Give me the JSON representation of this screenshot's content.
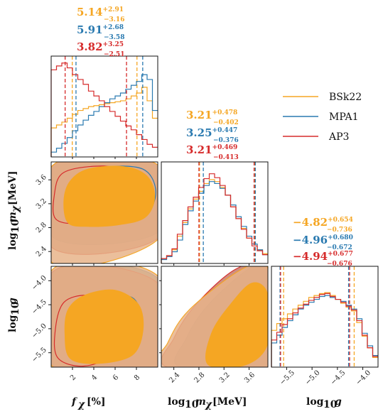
{
  "chart_data": {
    "type": "corner",
    "parameters": [
      {
        "key": "f",
        "label": "f_χ [%]",
        "ticks": [
          2,
          4,
          6,
          8
        ],
        "range": [
          0,
          10
        ]
      },
      {
        "key": "m",
        "label": "log10 m_χ [MeV]",
        "ticks": [
          2.4,
          2.8,
          3.2,
          3.6
        ],
        "range": [
          2.2,
          3.9
        ]
      },
      {
        "key": "g",
        "label": "log10 g",
        "ticks": [
          -5.5,
          -5.0,
          -4.5,
          -4.0
        ],
        "range": [
          -5.8,
          -3.7
        ]
      }
    ],
    "axis_labels": {
      "f_main": "f",
      "f_sub": "χ",
      "f_unit": "[%]",
      "m_pre": "log",
      "m_base": "10",
      "m_main": "m",
      "m_sub": "χ",
      "m_unit": "[MeV]",
      "g_pre": "log",
      "g_base": "10",
      "g_main": "g"
    },
    "y_ticks": {
      "m": [
        "3.6",
        "3.2",
        "2.8",
        "2.4"
      ],
      "g": [
        "−4.0",
        "−4.5",
        "−5.0",
        "−5.5"
      ]
    },
    "x_tick_labels": {
      "f": [
        "2",
        "4",
        "6",
        "8"
      ],
      "m": [
        "2.4",
        "2.8",
        "3.2",
        "3.6"
      ],
      "g": [
        "−5.5",
        "−5.0",
        "−4.5",
        "−4.0"
      ]
    },
    "series": [
      {
        "name": "BSk22",
        "color": "#f5a623"
      },
      {
        "name": "MPA1",
        "color": "#2a7ab0"
      },
      {
        "name": "AP3",
        "color": "#d62b2b"
      }
    ],
    "summaries": {
      "f": [
        {
          "series": "BSk22",
          "median": "5.14",
          "plus": "+2.91",
          "minus": "−3.16"
        },
        {
          "series": "MPA1",
          "median": "5.91",
          "plus": "+2.68",
          "minus": "−3.58"
        },
        {
          "series": "AP3",
          "median": "3.82",
          "plus": "+3.25",
          "minus": "−2.51"
        }
      ],
      "m": [
        {
          "series": "BSk22",
          "median": "3.21",
          "plus": "+0.478",
          "minus": "−0.402"
        },
        {
          "series": "MPA1",
          "median": "3.25",
          "plus": "+0.447",
          "minus": "−0.376"
        },
        {
          "series": "AP3",
          "median": "3.21",
          "plus": "+0.469",
          "minus": "−0.413"
        }
      ],
      "g": [
        {
          "series": "BSk22",
          "median": "−4.82",
          "plus": "+0.654",
          "minus": "−0.736"
        },
        {
          "series": "MPA1",
          "median": "−4.96",
          "plus": "+0.680",
          "minus": "−0.672"
        },
        {
          "series": "AP3",
          "median": "−4.94",
          "plus": "+0.677",
          "minus": "−0.676"
        }
      ]
    },
    "histograms": {
      "f": {
        "bins": [
          0,
          10,
          20
        ],
        "BSk22": [
          0.3,
          0.33,
          0.36,
          0.4,
          0.44,
          0.48,
          0.5,
          0.52,
          0.53,
          0.54,
          0.55,
          0.56,
          0.57,
          0.58,
          0.6,
          0.63,
          0.66,
          0.72,
          0.58,
          0.4
        ],
        "MPA1": [
          0.05,
          0.09,
          0.14,
          0.2,
          0.27,
          0.33,
          0.38,
          0.43,
          0.47,
          0.52,
          0.56,
          0.6,
          0.63,
          0.66,
          0.7,
          0.74,
          0.78,
          0.85,
          0.8,
          0.48
        ],
        "AP3": [
          0.9,
          0.94,
          0.97,
          0.92,
          0.85,
          0.8,
          0.75,
          0.68,
          0.63,
          0.58,
          0.52,
          0.47,
          0.42,
          0.37,
          0.32,
          0.28,
          0.23,
          0.18,
          0.13,
          0.1
        ],
        "quantiles": {
          "BSk22": [
            1.98,
            8.05
          ],
          "MPA1": [
            2.33,
            8.59
          ],
          "AP3": [
            1.31,
            7.07
          ]
        }
      },
      "m": {
        "bins": [
          2.2,
          3.9,
          20
        ],
        "BSk22": [
          0.05,
          0.08,
          0.14,
          0.28,
          0.42,
          0.56,
          0.66,
          0.74,
          0.82,
          0.86,
          0.84,
          0.78,
          0.7,
          0.58,
          0.46,
          0.36,
          0.26,
          0.2,
          0.14,
          0.1
        ],
        "MPA1": [
          0.04,
          0.07,
          0.12,
          0.24,
          0.4,
          0.54,
          0.64,
          0.72,
          0.8,
          0.84,
          0.82,
          0.77,
          0.7,
          0.6,
          0.48,
          0.38,
          0.28,
          0.2,
          0.14,
          0.09
        ],
        "AP3": [
          0.05,
          0.08,
          0.15,
          0.3,
          0.44,
          0.58,
          0.68,
          0.78,
          0.87,
          0.92,
          0.88,
          0.8,
          0.7,
          0.58,
          0.46,
          0.35,
          0.26,
          0.18,
          0.13,
          0.09
        ],
        "quantiles": {
          "BSk22": [
            2.81,
            3.69
          ],
          "MPA1": [
            2.87,
            3.7
          ],
          "AP3": [
            2.8,
            3.68
          ]
        }
      },
      "g": {
        "bins": [
          -5.8,
          -3.7,
          20
        ],
        "BSk22": [
          0.38,
          0.45,
          0.5,
          0.55,
          0.6,
          0.64,
          0.68,
          0.72,
          0.74,
          0.76,
          0.77,
          0.74,
          0.7,
          0.66,
          0.62,
          0.58,
          0.46,
          0.32,
          0.2,
          0.1
        ],
        "MPA1": [
          0.25,
          0.33,
          0.41,
          0.48,
          0.54,
          0.6,
          0.64,
          0.67,
          0.7,
          0.73,
          0.74,
          0.72,
          0.7,
          0.68,
          0.64,
          0.6,
          0.5,
          0.35,
          0.22,
          0.12
        ],
        "AP3": [
          0.28,
          0.36,
          0.44,
          0.5,
          0.56,
          0.61,
          0.65,
          0.69,
          0.72,
          0.75,
          0.76,
          0.73,
          0.7,
          0.67,
          0.63,
          0.59,
          0.48,
          0.33,
          0.2,
          0.11
        ],
        "quantiles": {
          "BSk22": [
            -5.56,
            -4.17
          ],
          "MPA1": [
            -5.63,
            -4.28
          ],
          "AP3": [
            -5.62,
            -4.26
          ]
        }
      }
    },
    "contours": {
      "fm": {
        "BSk22": {
          "outer": [
            [
              0.2,
              2.2
            ],
            [
              10,
              2.6
            ],
            [
              10,
              3.85
            ],
            [
              0.2,
              3.85
            ]
          ],
          "inner": [
            [
              1.6,
              2.88
            ],
            [
              3.5,
              2.82
            ],
            [
              6.4,
              2.85
            ],
            [
              8.8,
              2.97
            ],
            [
              9.7,
              3.3
            ],
            [
              9.0,
              3.66
            ],
            [
              6.8,
              3.82
            ],
            [
              3.5,
              3.78
            ],
            [
              1.8,
              3.58
            ],
            [
              1.2,
              3.25
            ]
          ]
        },
        "MPA1": {
          "outer": [
            [
              0.3,
              2.62
            ],
            [
              10,
              2.72
            ],
            [
              10,
              3.85
            ],
            [
              0.3,
              3.85
            ]
          ],
          "inner": [
            [
              1.8,
              2.92
            ],
            [
              4.5,
              2.86
            ],
            [
              7.2,
              2.92
            ],
            [
              9.2,
              3.08
            ],
            [
              9.8,
              3.45
            ],
            [
              8.6,
              3.78
            ],
            [
              5.2,
              3.82
            ],
            [
              2.6,
              3.7
            ],
            [
              1.6,
              3.4
            ]
          ]
        },
        "AP3": {
          "outer": [
            [
              0.2,
              2.45
            ],
            [
              10,
              2.62
            ],
            [
              10,
              3.85
            ],
            [
              0.2,
              3.85
            ]
          ],
          "inner": [
            [
              0.4,
              2.95
            ],
            [
              2.5,
              2.86
            ],
            [
              5.0,
              2.9
            ],
            [
              7.0,
              3.05
            ],
            [
              7.5,
              3.4
            ],
            [
              6.2,
              3.78
            ],
            [
              3.5,
              3.82
            ],
            [
              1.0,
              3.7
            ],
            [
              0.3,
              3.35
            ]
          ]
        }
      },
      "fg": {
        "BSk22": {
          "outer": [
            [
              0.2,
              -5.8
            ],
            [
              10,
              -5.8
            ],
            [
              10,
              -3.9
            ],
            [
              0.2,
              -3.75
            ]
          ],
          "inner": [
            [
              1.8,
              -5.62
            ],
            [
              4.5,
              -5.72
            ],
            [
              7.6,
              -5.55
            ],
            [
              8.6,
              -5.05
            ],
            [
              8.2,
              -4.5
            ],
            [
              6.0,
              -4.2
            ],
            [
              3.2,
              -4.3
            ],
            [
              1.6,
              -4.6
            ],
            [
              1.3,
              -5.1
            ]
          ]
        },
        "MPA1": {
          "outer": [
            [
              0.3,
              -5.8
            ],
            [
              10,
              -5.8
            ],
            [
              10,
              -3.95
            ],
            [
              0.3,
              -3.8
            ]
          ],
          "inner": [
            [
              3.2,
              -5.45
            ],
            [
              5.0,
              -5.6
            ],
            [
              7.6,
              -5.3
            ],
            [
              8.4,
              -4.75
            ],
            [
              7.6,
              -4.35
            ],
            [
              5.6,
              -4.4
            ],
            [
              4.0,
              -4.7
            ],
            [
              3.0,
              -5.05
            ]
          ]
        },
        "AP3": {
          "outer": [
            [
              0.2,
              -5.8
            ],
            [
              10,
              -5.8
            ],
            [
              10,
              -4.05
            ],
            [
              0.2,
              -3.8
            ]
          ],
          "inner": [
            [
              0.6,
              -5.6
            ],
            [
              3.0,
              -5.78
            ],
            [
              5.6,
              -5.55
            ],
            [
              6.3,
              -5.0
            ],
            [
              5.6,
              -4.45
            ],
            [
              3.4,
              -4.3
            ],
            [
              1.2,
              -4.45
            ],
            [
              0.4,
              -5.0
            ]
          ]
        }
      },
      "mg": {
        "BSk22": {
          "outer": [
            [
              2.2,
              -5.8
            ],
            [
              3.9,
              -5.8
            ],
            [
              3.9,
              -3.75
            ],
            [
              3.5,
              -3.75
            ],
            [
              2.65,
              -4.6
            ],
            [
              2.3,
              -5.3
            ]
          ],
          "inner": [
            [
              2.95,
              -5.75
            ],
            [
              3.55,
              -5.75
            ],
            [
              3.9,
              -5.3
            ],
            [
              3.9,
              -4.3
            ],
            [
              3.65,
              -4.05
            ],
            [
              3.3,
              -4.5
            ],
            [
              3.0,
              -5.1
            ]
          ]
        },
        "MPA1": {
          "outer": [
            [
              2.5,
              -5.8
            ],
            [
              3.9,
              -5.8
            ],
            [
              3.9,
              -3.75
            ],
            [
              3.6,
              -3.75
            ],
            [
              2.95,
              -4.5
            ],
            [
              2.6,
              -5.2
            ]
          ],
          "inner": [
            [
              3.05,
              -5.75
            ],
            [
              3.45,
              -5.75
            ],
            [
              3.8,
              -5.2
            ],
            [
              3.85,
              -4.45
            ],
            [
              3.65,
              -4.2
            ],
            [
              3.3,
              -4.6
            ],
            [
              3.1,
              -5.2
            ]
          ]
        },
        "AP3": {
          "outer": [
            [
              2.3,
              -5.8
            ],
            [
              3.9,
              -5.8
            ],
            [
              3.9,
              -3.75
            ],
            [
              3.4,
              -3.75
            ],
            [
              2.75,
              -4.5
            ],
            [
              2.4,
              -5.2
            ]
          ],
          "inner": [
            [
              3.0,
              -5.75
            ],
            [
              3.5,
              -5.75
            ],
            [
              3.85,
              -5.25
            ],
            [
              3.9,
              -4.4
            ],
            [
              3.7,
              -4.1
            ],
            [
              3.35,
              -4.55
            ],
            [
              3.05,
              -5.15
            ]
          ]
        }
      }
    }
  }
}
